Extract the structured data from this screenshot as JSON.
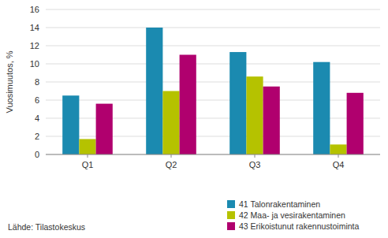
{
  "chart_data": {
    "type": "bar",
    "categories": [
      "Q1",
      "Q2",
      "Q3",
      "Q4"
    ],
    "series": [
      {
        "name": "41 Talonrakentaminen",
        "color": "#1b8ab0",
        "values": [
          6.5,
          14.0,
          11.3,
          10.2
        ]
      },
      {
        "name": "42 Maa- ja vesirakentaminen",
        "color": "#b5c200",
        "values": [
          1.7,
          7.0,
          8.6,
          1.1
        ]
      },
      {
        "name": "43 Erikoistunut rakennustoiminta",
        "color": "#b0006e",
        "values": [
          5.6,
          11.0,
          7.5,
          6.8
        ]
      }
    ],
    "ylabel": "Vuosimuutos, %",
    "ylim": [
      0,
      16
    ],
    "yticks": [
      0,
      2,
      4,
      6,
      8,
      10,
      12,
      14,
      16
    ],
    "grid": true,
    "legend": "lower right",
    "annotations": [
      "Lähde: Tilastokeskus"
    ]
  }
}
